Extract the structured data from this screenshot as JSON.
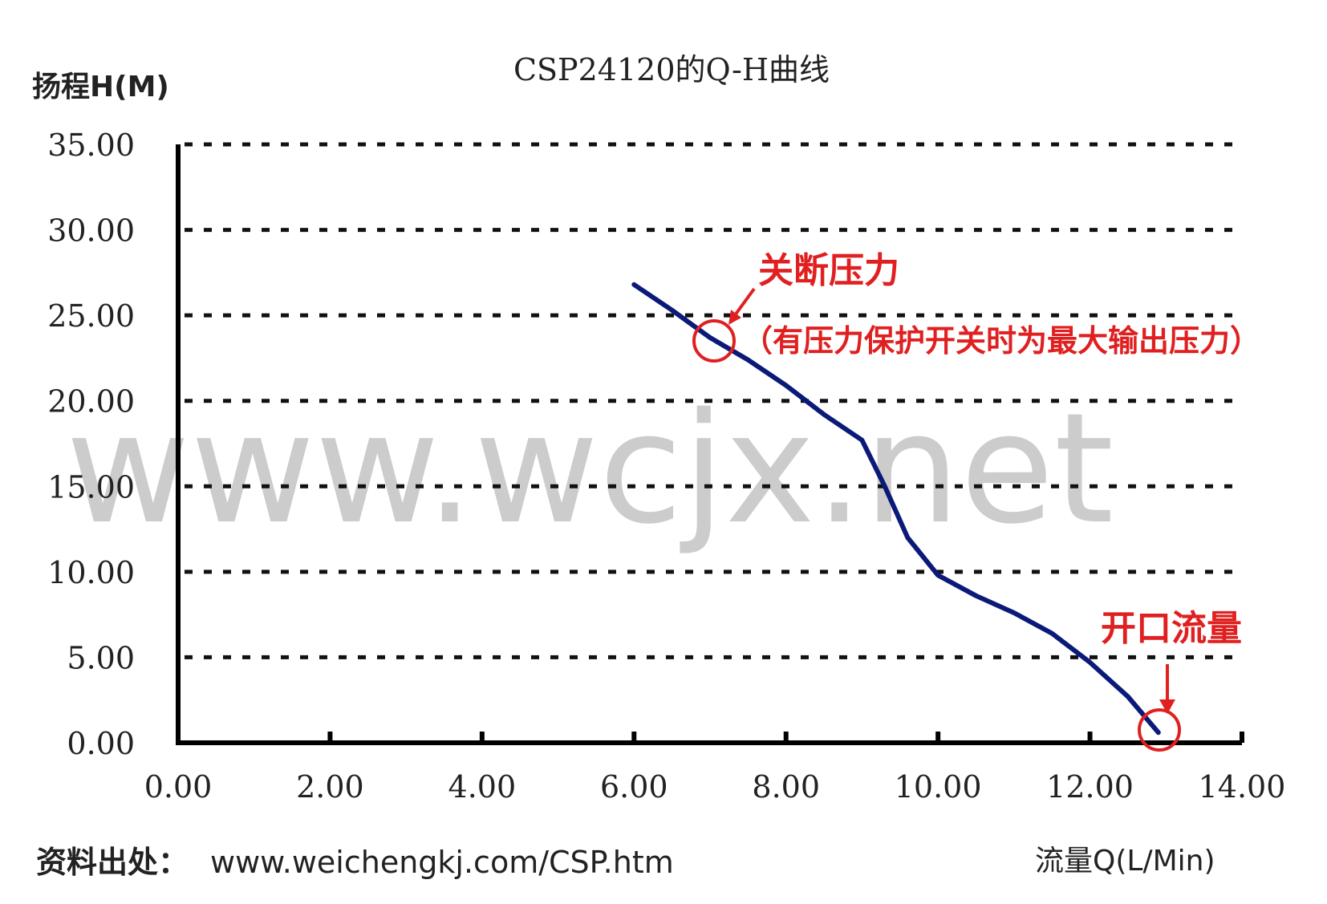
{
  "chart_data": {
    "type": "line",
    "title": "CSP24120的Q-H曲线",
    "xlabel": "流量Q(L/Min)",
    "ylabel": "扬程H(M)",
    "xlim": [
      0,
      14
    ],
    "ylim": [
      0,
      35
    ],
    "x_ticks": [
      "0.00",
      "2.00",
      "4.00",
      "6.00",
      "8.00",
      "10.00",
      "12.00",
      "14.00"
    ],
    "y_ticks": [
      "0.00",
      "5.00",
      "10.00",
      "15.00",
      "20.00",
      "25.00",
      "30.00",
      "35.00"
    ],
    "grid": "horizontal dashed",
    "series": [
      {
        "color": "#0b1a78",
        "x": [
          6.0,
          6.5,
          7.0,
          7.5,
          8.0,
          8.5,
          9.0,
          9.3,
          9.6,
          10.0,
          10.5,
          11.0,
          11.5,
          12.0,
          12.5,
          12.9
        ],
        "y": [
          26.8,
          25.3,
          23.7,
          22.4,
          20.9,
          19.2,
          17.7,
          15.0,
          12.0,
          9.8,
          8.6,
          7.6,
          6.4,
          4.7,
          2.7,
          0.6
        ]
      }
    ],
    "annotations": [
      {
        "text": "关断压力",
        "color": "#e02020"
      },
      {
        "text": "（有压力保护开关时为最大输出压力）",
        "color": "#e02020"
      },
      {
        "text": "开口流量",
        "color": "#e02020"
      }
    ],
    "watermark": "www.wcjx.net"
  },
  "source": {
    "label": "资料出处：",
    "url": "www.weichengkj.com/CSP.htm"
  }
}
